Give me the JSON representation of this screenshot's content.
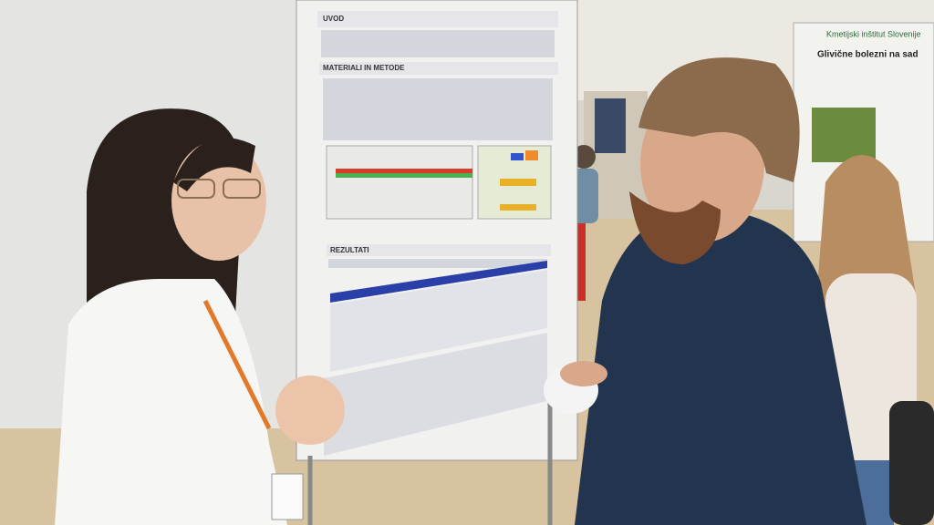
{
  "poster": {
    "sections": [
      "UVOD",
      "MATERIALI IN METODE",
      "REZULTATI"
    ]
  },
  "side_poster": {
    "institute": "Kmetijski inštitut Slovenije",
    "title": "Glivične bolezni na sad"
  }
}
